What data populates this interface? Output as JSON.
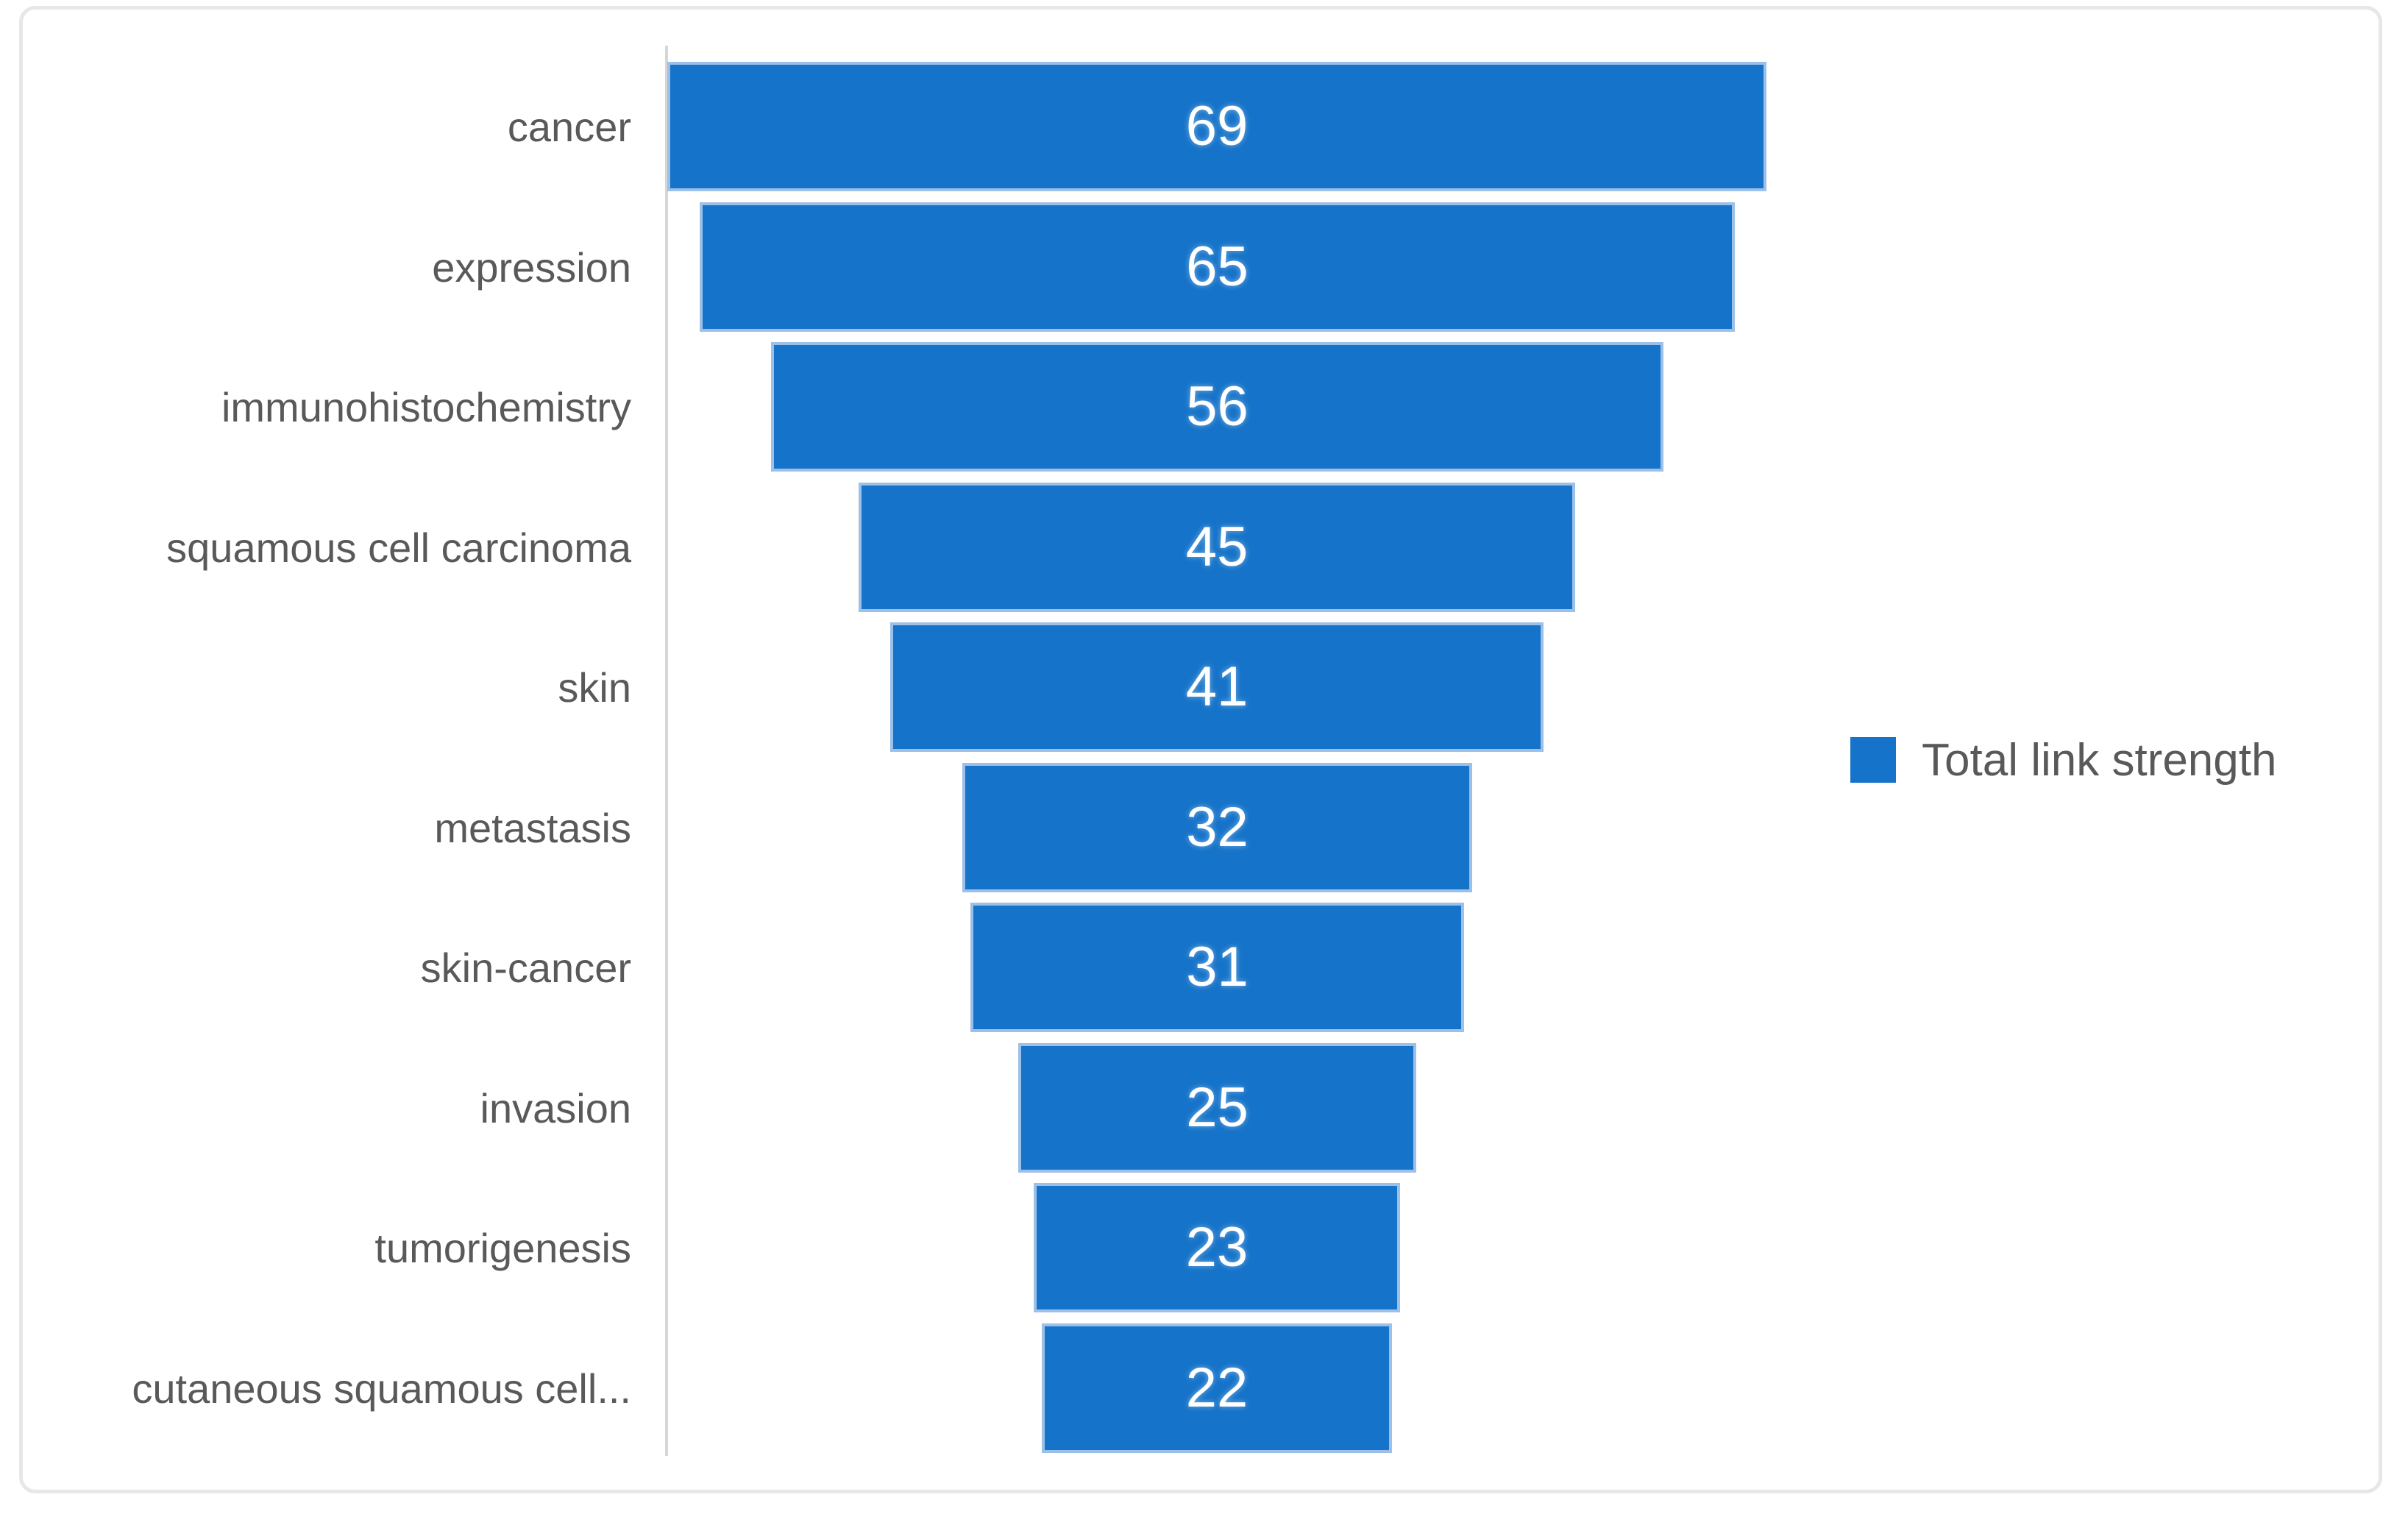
{
  "chart_data": {
    "type": "bar",
    "variant": "horizontal-centered-funnel",
    "title": "",
    "categories": [
      "cancer",
      "expression",
      "immunohistochemistry",
      "squamous cell carcinoma",
      "skin",
      "metastasis",
      "skin-cancer",
      "invasion",
      "tumorigenesis",
      "cutaneous squamous cell..."
    ],
    "values": [
      69,
      65,
      56,
      45,
      41,
      32,
      31,
      25,
      23,
      22
    ],
    "series": [
      {
        "name": "Total link strength",
        "values": [
          69,
          65,
          56,
          45,
          41,
          32,
          31,
          25,
          23,
          22
        ]
      }
    ],
    "value_labels_visible": true,
    "xlabel": "",
    "ylabel": "",
    "xlim": [
      0,
      69
    ],
    "grid": false,
    "legend_position": "right-middle",
    "legend": {
      "label": "Total link strength"
    },
    "colors": {
      "bar_fill": "#1573c9",
      "bar_border": "#9dc0e8",
      "value_text": "#ffffff",
      "category_text": "#595959",
      "legend_text": "#595959",
      "axis_line": "#d6d6d6",
      "frame_border": "#e7e7e7",
      "background": "#ffffff"
    }
  }
}
